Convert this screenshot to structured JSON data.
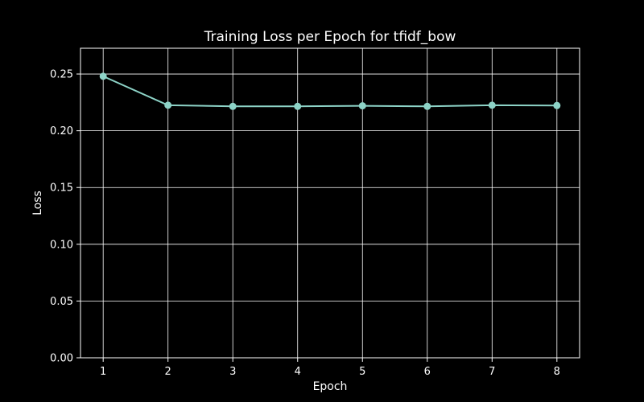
{
  "chart_data": {
    "type": "line",
    "title": "Training Loss per Epoch for tfidf_bow",
    "xlabel": "Epoch",
    "ylabel": "Loss",
    "x": [
      1,
      2,
      3,
      4,
      5,
      6,
      7,
      8
    ],
    "series": [
      {
        "values": [
          0.248,
          0.2225,
          0.2215,
          0.2215,
          0.222,
          0.2215,
          0.2225,
          0.2222
        ]
      }
    ],
    "xlim": [
      0.65,
      8.35
    ],
    "ylim": [
      0,
      0.2727
    ],
    "xticks": [
      1,
      2,
      3,
      4,
      5,
      6,
      7,
      8
    ],
    "yticks": [
      0.0,
      0.05,
      0.1,
      0.15,
      0.2,
      0.25
    ],
    "ytick_labels": [
      "0.00",
      "0.05",
      "0.10",
      "0.15",
      "0.20",
      "0.25"
    ],
    "grid": true,
    "colors": {
      "background": "#000000",
      "axes": "#ffffff",
      "grid": "#ffffff",
      "line": "#8dd3c7",
      "text": "#ffffff"
    }
  }
}
